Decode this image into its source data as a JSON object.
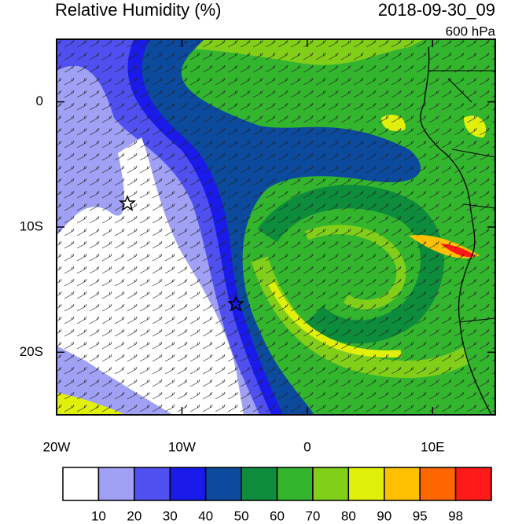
{
  "map": {
    "title": "Relative Humidity (%)",
    "time": "2018-09-30_09",
    "level": "600 hPa",
    "xlim": [
      -20,
      15
    ],
    "ylim": [
      -25,
      5
    ],
    "xticks": [
      {
        "value": -20,
        "label": "20W"
      },
      {
        "value": -10,
        "label": "10W"
      },
      0,
      {
        "value": 10,
        "label": "10E"
      }
    ],
    "yticks": [
      0,
      {
        "value": -10,
        "label": "10S"
      },
      {
        "value": -20,
        "label": "20S"
      }
    ],
    "colorbar": {
      "levels": [
        10,
        20,
        30,
        40,
        50,
        60,
        70,
        80,
        90,
        95,
        98
      ],
      "colors": [
        "#ffffff",
        "#a0a0f5",
        "#5050f0",
        "#1a1aeb",
        "#0b4a9c",
        "#0d8c3c",
        "#33b52e",
        "#82cf1a",
        "#e1f00a",
        "#ffc000",
        "#ff6600",
        "#ff1a1a"
      ]
    }
  }
}
